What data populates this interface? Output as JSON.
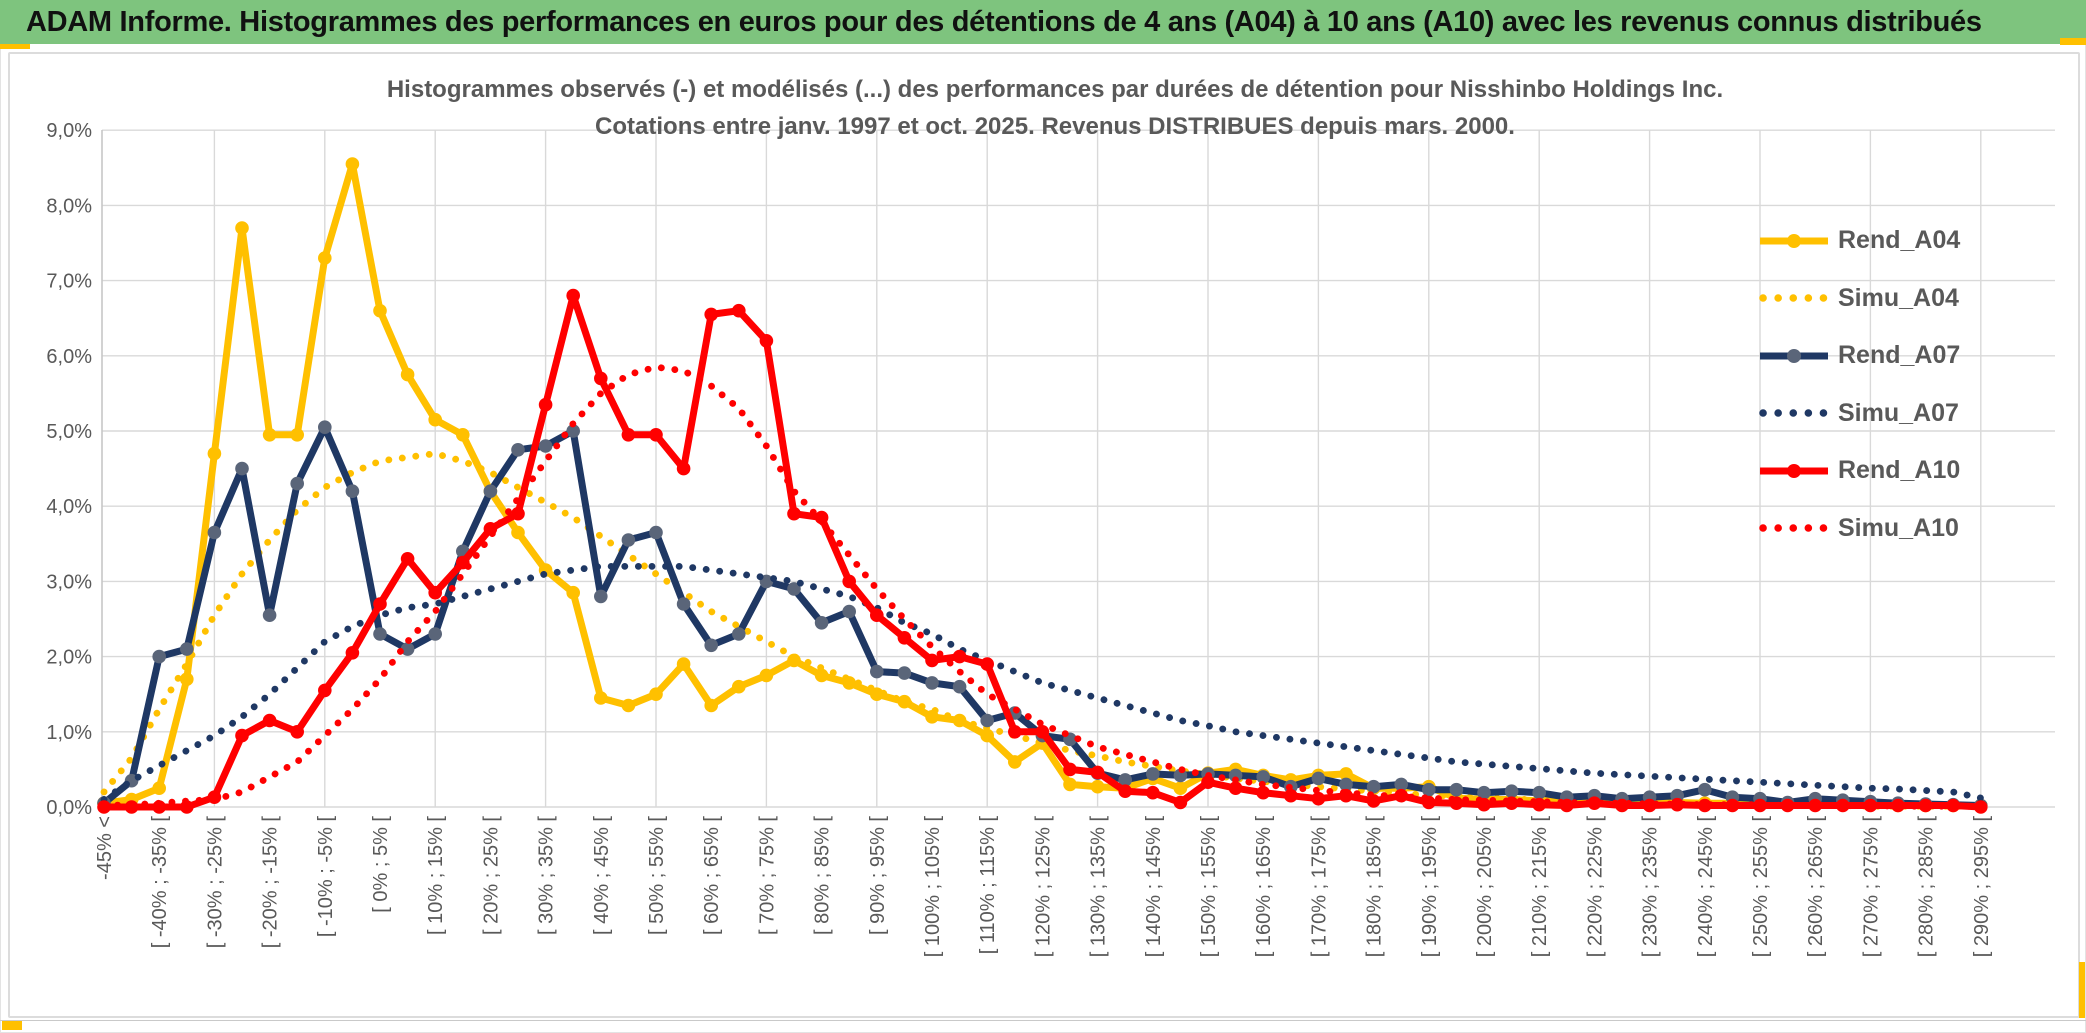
{
  "header": {
    "title": "ADAM Informe. Histogrammes des performances en euros pour des détentions de 4 ans (A04) à 10 ans (A10) avec les revenus connus distribués",
    "bar_color": "#7ec47e",
    "accent_color": "#ffc000"
  },
  "chart_data": {
    "type": "line",
    "title_line1": "Histogrammes observés (-) et modélisés (...) des performances par durées de détention pour Nisshinbo Holdings Inc.",
    "title_line2": "Cotations entre janv. 1997 et oct. 2025. Revenus DISTRIBUES depuis mars. 2000.",
    "text_color": "#595959",
    "grid": true,
    "grid_color": "#d9d9d9",
    "legend_position": "right",
    "ylim": [
      0,
      9
    ],
    "y_ticks": [
      "0,0%",
      "1,0%",
      "2,0%",
      "3,0%",
      "4,0%",
      "5,0%",
      "6,0%",
      "7,0%",
      "8,0%",
      "9,0%"
    ],
    "n_bins": 69,
    "bins_per_label": 2,
    "x_tick_labels": [
      "-45% <",
      "[ -40% ; -35% [",
      "[ -30% ; -25% [",
      "[ -20% ; -15% [",
      "[ -10% ; -5% [",
      "[ 0% ; 5% [",
      "[ 10% ; 15% [",
      "[ 20% ; 25% [",
      "[ 30% ; 35% [",
      "[ 40% ; 45% [",
      "[ 50% ; 55% [",
      "[ 60% ; 65% [",
      "[ 70% ; 75% [",
      "[ 80% ; 85% [",
      "[ 90% ; 95% [",
      "[ 100% ; 105% [",
      "[ 110% ; 115% [",
      "[ 120% ; 125% [",
      "[ 130% ; 135% [",
      "[ 140% ; 145% [",
      "[ 150% ; 155% [",
      "[ 160% ; 165% [",
      "[ 170% ; 175% [",
      "[ 180% ; 185% [",
      "[ 190% ; 195% [",
      "[ 200% ; 205% [",
      "[ 210% ; 215% [",
      "[ 220% ; 225% [",
      "[ 230% ; 235% [",
      "[ 240% ; 245% [",
      "[ 250% ; 255% [",
      "[ 260% ; 265% [",
      "[ 270% ; 275% [",
      "[ 280% ; 285% [",
      "[ 290% ; 295% ["
    ],
    "series": [
      {
        "name": "Rend_A04",
        "style": "solid",
        "color": "#ffc000",
        "marker_color": "#ffc000",
        "values": [
          0.05,
          0.1,
          0.25,
          1.7,
          4.7,
          7.7,
          4.95,
          4.95,
          7.3,
          8.55,
          6.6,
          5.75,
          5.15,
          4.95,
          4.2,
          3.65,
          3.15,
          2.85,
          1.45,
          1.35,
          1.5,
          1.9,
          1.35,
          1.6,
          1.75,
          1.95,
          1.75,
          1.65,
          1.5,
          1.4,
          1.2,
          1.15,
          0.95,
          0.6,
          0.85,
          0.3,
          0.27,
          0.25,
          0.38,
          0.25,
          0.45,
          0.5,
          0.42,
          0.36,
          0.42,
          0.44,
          0.25,
          0.25,
          0.27,
          0.12,
          0.1,
          0.1,
          0.08,
          0.1,
          0.08,
          0.06,
          0.08,
          0.06,
          0.05,
          0.05,
          0.04,
          0.04,
          0.03,
          0.03,
          0.03,
          0.02,
          0.02,
          0.02,
          0.02
        ]
      },
      {
        "name": "Simu_A04",
        "style": "dotted",
        "color": "#ffc000",
        "values": [
          0.2,
          0.65,
          1.3,
          1.9,
          2.55,
          3.1,
          3.55,
          3.95,
          4.25,
          4.45,
          4.6,
          4.65,
          4.7,
          4.6,
          4.45,
          4.25,
          4.05,
          3.85,
          3.6,
          3.35,
          3.1,
          2.85,
          2.6,
          2.4,
          2.2,
          2.0,
          1.85,
          1.7,
          1.55,
          1.4,
          1.3,
          1.15,
          1.05,
          0.95,
          0.85,
          0.75,
          0.68,
          0.6,
          0.54,
          0.48,
          0.43,
          0.38,
          0.34,
          0.3,
          0.27,
          0.24,
          0.21,
          0.18,
          0.16,
          0.14,
          0.12,
          0.11,
          0.09,
          0.08,
          0.07,
          0.06,
          0.05,
          0.05,
          0.04,
          0.03,
          0.03,
          0.02,
          0.02,
          0.02,
          0.01,
          0.01,
          0.01,
          0.01,
          0.01
        ]
      },
      {
        "name": "Rend_A07",
        "style": "solid",
        "color": "#1f3864",
        "marker_color": "#5a6579",
        "values": [
          0.05,
          0.35,
          2.0,
          2.1,
          3.65,
          4.5,
          2.55,
          4.3,
          5.05,
          4.2,
          2.3,
          2.1,
          2.3,
          3.4,
          4.2,
          4.75,
          4.8,
          5.0,
          2.8,
          3.55,
          3.65,
          2.7,
          2.15,
          2.3,
          3.0,
          2.9,
          2.45,
          2.6,
          1.8,
          1.78,
          1.65,
          1.6,
          1.15,
          1.25,
          0.95,
          0.9,
          0.45,
          0.36,
          0.44,
          0.42,
          0.44,
          0.42,
          0.4,
          0.27,
          0.38,
          0.3,
          0.27,
          0.3,
          0.23,
          0.23,
          0.19,
          0.21,
          0.19,
          0.13,
          0.15,
          0.11,
          0.13,
          0.15,
          0.23,
          0.13,
          0.11,
          0.06,
          0.11,
          0.09,
          0.07,
          0.05,
          0.04,
          0.03,
          0.02
        ]
      },
      {
        "name": "Simu_A07",
        "style": "dotted",
        "color": "#1f3864",
        "values": [
          0.1,
          0.35,
          0.55,
          0.75,
          0.95,
          1.2,
          1.5,
          1.85,
          2.2,
          2.4,
          2.55,
          2.65,
          2.7,
          2.8,
          2.9,
          3.0,
          3.1,
          3.15,
          3.2,
          3.2,
          3.2,
          3.2,
          3.15,
          3.1,
          3.05,
          3.0,
          2.9,
          2.8,
          2.65,
          2.45,
          2.3,
          2.1,
          1.95,
          1.8,
          1.65,
          1.55,
          1.45,
          1.35,
          1.25,
          1.15,
          1.08,
          1.0,
          0.95,
          0.9,
          0.85,
          0.8,
          0.75,
          0.7,
          0.65,
          0.6,
          0.57,
          0.54,
          0.51,
          0.48,
          0.45,
          0.43,
          0.41,
          0.39,
          0.37,
          0.35,
          0.33,
          0.31,
          0.29,
          0.27,
          0.25,
          0.24,
          0.22,
          0.2,
          0.12
        ]
      },
      {
        "name": "Rend_A10",
        "style": "solid",
        "color": "#ff0000",
        "marker_color": "#ff0000",
        "values": [
          0.0,
          0.0,
          0.0,
          0.0,
          0.13,
          0.95,
          1.15,
          1.0,
          1.55,
          2.05,
          2.7,
          3.3,
          2.85,
          3.25,
          3.7,
          3.9,
          5.35,
          6.8,
          5.7,
          4.95,
          4.95,
          4.5,
          6.55,
          6.6,
          6.2,
          3.9,
          3.85,
          3.0,
          2.55,
          2.25,
          1.95,
          2.0,
          1.9,
          1.0,
          1.0,
          0.5,
          0.46,
          0.21,
          0.19,
          0.06,
          0.33,
          0.25,
          0.19,
          0.15,
          0.11,
          0.15,
          0.08,
          0.15,
          0.06,
          0.05,
          0.03,
          0.05,
          0.03,
          0.02,
          0.05,
          0.02,
          0.02,
          0.03,
          0.02,
          0.02,
          0.02,
          0.02,
          0.02,
          0.02,
          0.02,
          0.02,
          0.02,
          0.02,
          0.0
        ]
      },
      {
        "name": "Simu_A10",
        "style": "dotted",
        "color": "#ff0000",
        "values": [
          0.02,
          0.03,
          0.05,
          0.08,
          0.1,
          0.2,
          0.4,
          0.6,
          0.95,
          1.3,
          1.7,
          2.2,
          2.6,
          3.1,
          3.6,
          4.1,
          4.6,
          5.1,
          5.5,
          5.75,
          5.85,
          5.8,
          5.6,
          5.3,
          4.8,
          4.2,
          3.8,
          3.35,
          2.9,
          2.5,
          2.13,
          1.8,
          1.5,
          1.3,
          1.1,
          0.95,
          0.8,
          0.7,
          0.6,
          0.5,
          0.42,
          0.36,
          0.3,
          0.26,
          0.22,
          0.19,
          0.16,
          0.14,
          0.12,
          0.1,
          0.09,
          0.08,
          0.07,
          0.06,
          0.05,
          0.05,
          0.04,
          0.04,
          0.03,
          0.03,
          0.03,
          0.02,
          0.02,
          0.02,
          0.02,
          0.01,
          0.01,
          0.01,
          0.01
        ]
      }
    ]
  }
}
